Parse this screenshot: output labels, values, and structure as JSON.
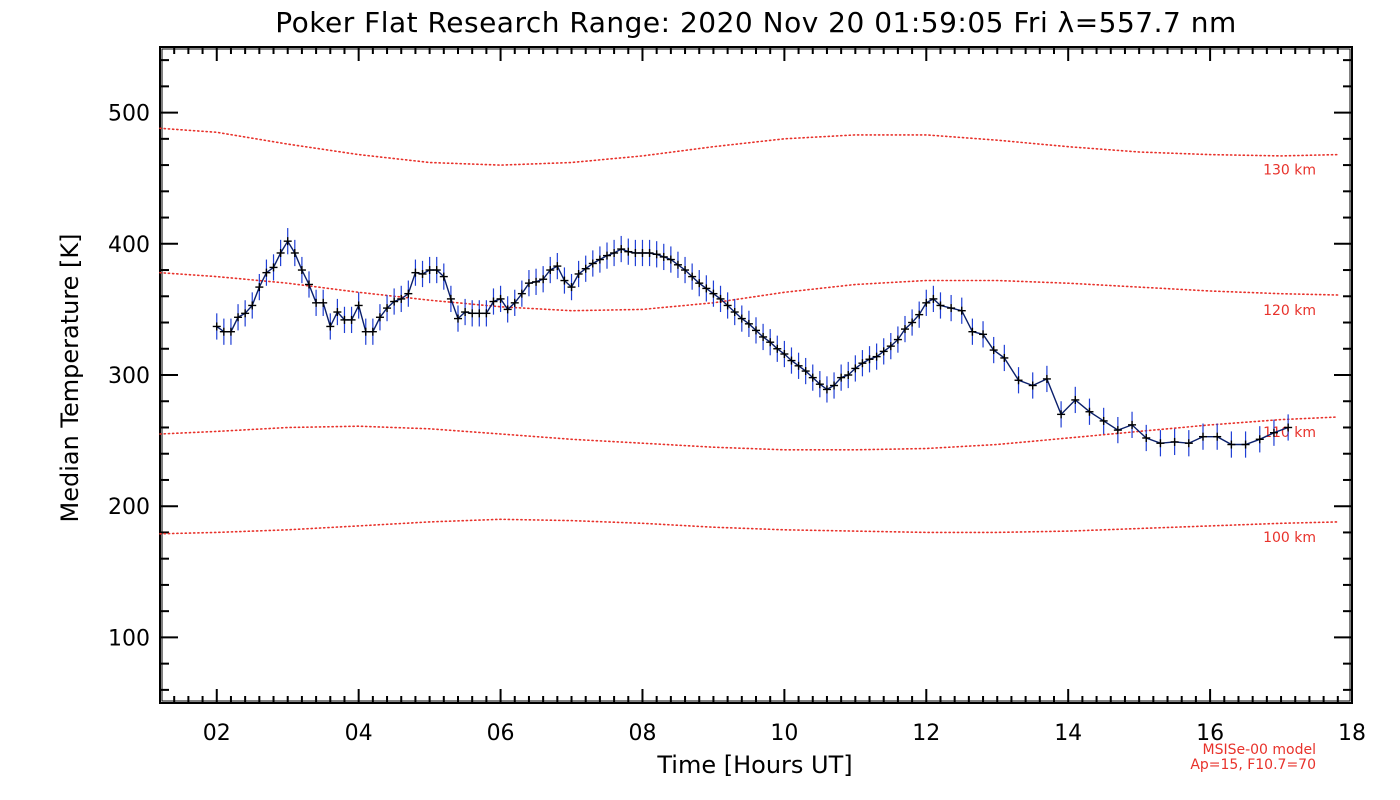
{
  "chart_data": {
    "type": "line",
    "title": "Poker Flat Research Range: 2020 Nov 20 01:59:05 Fri λ=557.7 nm",
    "xlabel": "Time [Hours UT]",
    "ylabel": "Median Temperature [K]",
    "xlim": [
      1.2,
      18
    ],
    "ylim": [
      50,
      550
    ],
    "x_ticks": [
      2,
      4,
      6,
      8,
      10,
      12,
      14,
      16,
      18
    ],
    "x_tick_labels": [
      "02",
      "04",
      "06",
      "08",
      "10",
      "12",
      "14",
      "16",
      "18"
    ],
    "y_ticks": [
      100,
      200,
      300,
      400,
      500
    ],
    "y_tick_labels": [
      "100",
      "200",
      "300",
      "400",
      "500"
    ],
    "grid": false,
    "series": [
      {
        "style": "points-with-error-bars",
        "color": "#0a1f6b",
        "errorbar_color": "#1f3fd6",
        "error": 10,
        "points": [
          [
            2.0,
            337
          ],
          [
            2.1,
            333
          ],
          [
            2.2,
            333
          ],
          [
            2.3,
            344
          ],
          [
            2.4,
            347
          ],
          [
            2.5,
            353
          ],
          [
            2.6,
            367
          ],
          [
            2.7,
            378
          ],
          [
            2.8,
            382
          ],
          [
            2.9,
            393
          ],
          [
            3.0,
            402
          ],
          [
            3.1,
            393
          ],
          [
            3.2,
            380
          ],
          [
            3.3,
            369
          ],
          [
            3.4,
            355
          ],
          [
            3.5,
            355
          ],
          [
            3.6,
            337
          ],
          [
            3.7,
            348
          ],
          [
            3.8,
            342
          ],
          [
            3.9,
            342
          ],
          [
            4.0,
            353
          ],
          [
            4.1,
            333
          ],
          [
            4.2,
            333
          ],
          [
            4.3,
            344
          ],
          [
            4.4,
            351
          ],
          [
            4.5,
            356
          ],
          [
            4.6,
            358
          ],
          [
            4.7,
            362
          ],
          [
            4.8,
            378
          ],
          [
            4.9,
            377
          ],
          [
            5.0,
            380
          ],
          [
            5.1,
            380
          ],
          [
            5.2,
            375
          ],
          [
            5.3,
            358
          ],
          [
            5.4,
            343
          ],
          [
            5.5,
            348
          ],
          [
            5.6,
            347
          ],
          [
            5.7,
            347
          ],
          [
            5.8,
            347
          ],
          [
            5.9,
            356
          ],
          [
            6.0,
            358
          ],
          [
            6.1,
            350
          ],
          [
            6.2,
            355
          ],
          [
            6.3,
            362
          ],
          [
            6.4,
            370
          ],
          [
            6.5,
            371
          ],
          [
            6.6,
            373
          ],
          [
            6.7,
            380
          ],
          [
            6.8,
            383
          ],
          [
            6.9,
            372
          ],
          [
            7.0,
            367
          ],
          [
            7.1,
            377
          ],
          [
            7.2,
            381
          ],
          [
            7.3,
            385
          ],
          [
            7.4,
            388
          ],
          [
            7.5,
            391
          ],
          [
            7.6,
            393
          ],
          [
            7.7,
            396
          ],
          [
            7.8,
            394
          ],
          [
            7.9,
            393
          ],
          [
            8.0,
            393
          ],
          [
            8.1,
            393
          ],
          [
            8.2,
            392
          ],
          [
            8.3,
            390
          ],
          [
            8.4,
            388
          ],
          [
            8.5,
            384
          ],
          [
            8.6,
            380
          ],
          [
            8.7,
            375
          ],
          [
            8.8,
            370
          ],
          [
            8.9,
            366
          ],
          [
            9.0,
            362
          ],
          [
            9.1,
            358
          ],
          [
            9.2,
            353
          ],
          [
            9.3,
            348
          ],
          [
            9.4,
            343
          ],
          [
            9.5,
            339
          ],
          [
            9.6,
            334
          ],
          [
            9.7,
            329
          ],
          [
            9.8,
            325
          ],
          [
            9.9,
            320
          ],
          [
            10.0,
            316
          ],
          [
            10.1,
            311
          ],
          [
            10.2,
            307
          ],
          [
            10.3,
            303
          ],
          [
            10.4,
            298
          ],
          [
            10.5,
            293
          ],
          [
            10.6,
            289
          ],
          [
            10.7,
            292
          ],
          [
            10.8,
            298
          ],
          [
            10.9,
            300
          ],
          [
            11.0,
            305
          ],
          [
            11.1,
            309
          ],
          [
            11.2,
            312
          ],
          [
            11.3,
            314
          ],
          [
            11.4,
            318
          ],
          [
            11.5,
            322
          ],
          [
            11.6,
            327
          ],
          [
            11.7,
            335
          ],
          [
            11.8,
            340
          ],
          [
            11.9,
            346
          ],
          [
            12.0,
            355
          ],
          [
            12.1,
            358
          ],
          [
            12.2,
            353
          ],
          [
            12.35,
            351
          ],
          [
            12.5,
            349
          ],
          [
            12.65,
            333
          ],
          [
            12.8,
            331
          ],
          [
            12.95,
            319
          ],
          [
            13.1,
            313
          ],
          [
            13.3,
            296
          ],
          [
            13.5,
            292
          ],
          [
            13.7,
            297
          ],
          [
            13.9,
            270
          ],
          [
            14.1,
            281
          ],
          [
            14.3,
            272
          ],
          [
            14.5,
            265
          ],
          [
            14.7,
            258
          ],
          [
            14.9,
            262
          ],
          [
            15.1,
            252
          ],
          [
            15.3,
            248
          ],
          [
            15.5,
            249
          ],
          [
            15.7,
            248
          ],
          [
            15.9,
            253
          ],
          [
            16.1,
            253
          ],
          [
            16.3,
            247
          ],
          [
            16.5,
            247
          ],
          [
            16.7,
            251
          ],
          [
            16.9,
            256
          ],
          [
            17.1,
            260
          ]
        ]
      },
      {
        "name": "130 km",
        "style": "dotted",
        "color": "#e8322b",
        "points": [
          [
            1.2,
            488
          ],
          [
            2.0,
            485
          ],
          [
            3.0,
            476
          ],
          [
            4.0,
            468
          ],
          [
            5.0,
            462
          ],
          [
            6.0,
            460
          ],
          [
            7.0,
            462
          ],
          [
            8.0,
            467
          ],
          [
            9.0,
            474
          ],
          [
            10.0,
            480
          ],
          [
            11.0,
            483
          ],
          [
            12.0,
            483
          ],
          [
            13.0,
            479
          ],
          [
            14.0,
            474
          ],
          [
            15.0,
            470
          ],
          [
            16.0,
            468
          ],
          [
            17.0,
            467
          ],
          [
            17.8,
            468
          ]
        ]
      },
      {
        "name": "120 km",
        "style": "dotted",
        "color": "#e8322b",
        "points": [
          [
            1.2,
            378
          ],
          [
            2.0,
            375
          ],
          [
            3.0,
            370
          ],
          [
            4.0,
            363
          ],
          [
            5.0,
            357
          ],
          [
            6.0,
            352
          ],
          [
            7.0,
            349
          ],
          [
            8.0,
            350
          ],
          [
            9.0,
            355
          ],
          [
            10.0,
            363
          ],
          [
            11.0,
            369
          ],
          [
            12.0,
            372
          ],
          [
            13.0,
            372
          ],
          [
            14.0,
            370
          ],
          [
            15.0,
            367
          ],
          [
            16.0,
            364
          ],
          [
            17.0,
            362
          ],
          [
            17.8,
            361
          ]
        ]
      },
      {
        "name": "110 km",
        "style": "dotted",
        "color": "#e8322b",
        "points": [
          [
            1.2,
            255
          ],
          [
            2.0,
            257
          ],
          [
            3.0,
            260
          ],
          [
            4.0,
            261
          ],
          [
            5.0,
            259
          ],
          [
            6.0,
            255
          ],
          [
            7.0,
            251
          ],
          [
            8.0,
            248
          ],
          [
            9.0,
            245
          ],
          [
            10.0,
            243
          ],
          [
            11.0,
            243
          ],
          [
            12.0,
            244
          ],
          [
            13.0,
            247
          ],
          [
            14.0,
            252
          ],
          [
            15.0,
            257
          ],
          [
            16.0,
            262
          ],
          [
            17.0,
            266
          ],
          [
            17.8,
            268
          ]
        ]
      },
      {
        "name": "100 km",
        "style": "dotted",
        "color": "#e8322b",
        "points": [
          [
            1.2,
            179
          ],
          [
            2.0,
            180
          ],
          [
            3.0,
            182
          ],
          [
            4.0,
            185
          ],
          [
            5.0,
            188
          ],
          [
            6.0,
            190
          ],
          [
            7.0,
            189
          ],
          [
            8.0,
            187
          ],
          [
            9.0,
            184
          ],
          [
            10.0,
            182
          ],
          [
            11.0,
            181
          ],
          [
            12.0,
            180
          ],
          [
            13.0,
            180
          ],
          [
            14.0,
            181
          ],
          [
            15.0,
            183
          ],
          [
            16.0,
            185
          ],
          [
            17.0,
            187
          ],
          [
            17.8,
            188
          ]
        ]
      }
    ],
    "model_label_lines": [
      "MSISe-00 model",
      "Ap=15, F10.7=70"
    ]
  }
}
